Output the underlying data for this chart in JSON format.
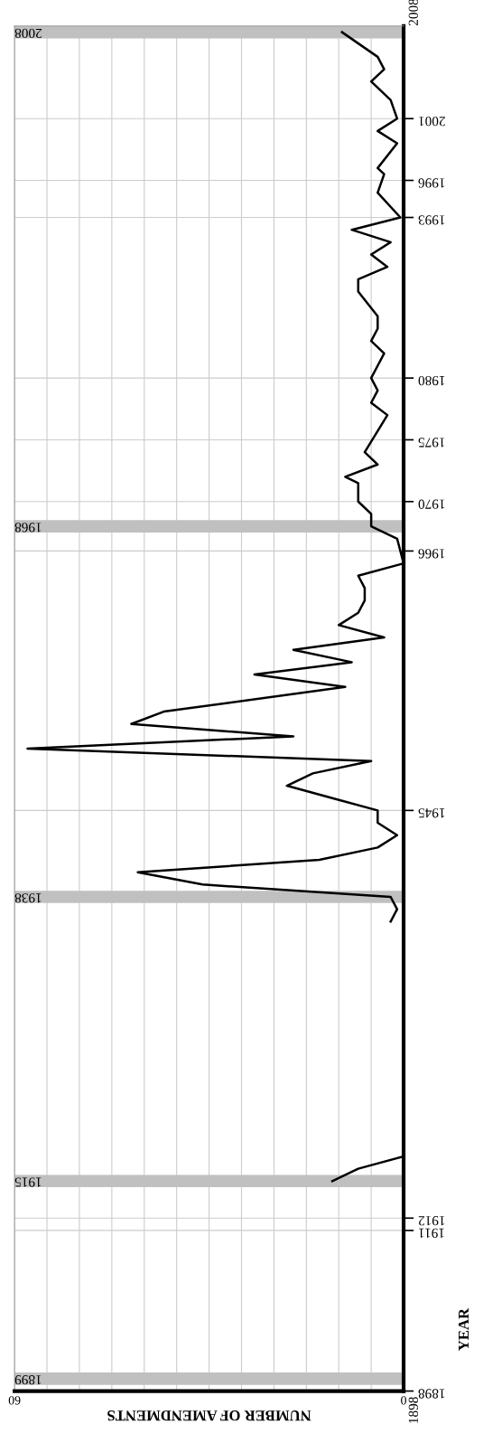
{
  "chart_data": {
    "type": "line",
    "orientation": "horizontal",
    "xlabel": "NUMBER OF AMENDMENTS",
    "ylabel": "YEAR",
    "series": [
      {
        "color": "#000000",
        "x": [
          1915,
          1916,
          1917
        ],
        "values": [
          11,
          7,
          0
        ]
      },
      {
        "color": "#000000",
        "x": [
          1936,
          1937,
          1938,
          1939,
          1940,
          1941,
          1942,
          1943,
          1944,
          1945,
          1946,
          1947,
          1948,
          1949,
          1950,
          1951,
          1952,
          1953,
          1955,
          1956,
          1957,
          1958,
          1959,
          1960,
          1961,
          1962,
          1963,
          1964,
          1965,
          1967,
          1968,
          1969,
          1970,
          1971.5,
          1972,
          1973,
          1974,
          1977,
          1978,
          1979,
          1980,
          1981,
          1982,
          1983,
          1984,
          1985,
          1987,
          1988,
          1989,
          1990,
          1991,
          1992,
          1993,
          1995,
          1996.5,
          1997,
          1999,
          2000,
          2001,
          2002.5,
          2004,
          2005,
          2006,
          2008
        ],
        "values": [
          2,
          1,
          2,
          31,
          41,
          13,
          4,
          1,
          4,
          4,
          11,
          18,
          14,
          5,
          58,
          17,
          42,
          37,
          9,
          23,
          8,
          17,
          3,
          10,
          7,
          6,
          6,
          7,
          0,
          1,
          5,
          5,
          7,
          7,
          9,
          4,
          6,
          2.5,
          5,
          4,
          5,
          4,
          3,
          5,
          4,
          4,
          7,
          7,
          2.5,
          5,
          2,
          8,
          0.5,
          4,
          3,
          4,
          1,
          4,
          1,
          2,
          5,
          3,
          4,
          9.5
        ]
      }
    ],
    "xlim": [
      60,
      0
    ],
    "xticks": [
      {
        "value": 60,
        "label": "60"
      },
      {
        "value": 55,
        "label": null
      },
      {
        "value": 50,
        "label": null
      },
      {
        "value": 45,
        "label": null
      },
      {
        "value": 40,
        "label": null
      },
      {
        "value": 35,
        "label": null
      },
      {
        "value": 30,
        "label": null
      },
      {
        "value": 25,
        "label": null
      },
      {
        "value": 20,
        "label": null
      },
      {
        "value": 15,
        "label": null
      },
      {
        "value": 10,
        "label": null
      },
      {
        "value": 5,
        "label": null
      },
      0
    ],
    "ylim": [
      1898,
      2008.5
    ],
    "yticks": [
      1898,
      1911,
      1912,
      1945,
      1966,
      1970,
      1975,
      1980,
      1993,
      1996,
      2001
    ],
    "bands": [
      {
        "axis": "y",
        "from": 1898.5,
        "to": 1899.5,
        "label": "1899",
        "color": "#c0c0c0"
      },
      {
        "axis": "y",
        "from": 1914.5,
        "to": 1915.5,
        "label": "1915",
        "color": "#c0c0c0"
      },
      {
        "axis": "y",
        "from": 1937.5,
        "to": 1938.5,
        "label": "1938",
        "color": "#c0c0c0"
      },
      {
        "axis": "y",
        "from": 1967.5,
        "to": 1968.5,
        "label": "1968",
        "color": "#c0c0c0"
      },
      {
        "axis": "y",
        "from": 2007.5,
        "to": 2008.5,
        "label": "2008",
        "color": "#c0c0c0"
      }
    ],
    "annotations": [
      "1898",
      "2008"
    ],
    "grid": true,
    "legend": false,
    "marker": "none",
    "line_style": "solid"
  }
}
